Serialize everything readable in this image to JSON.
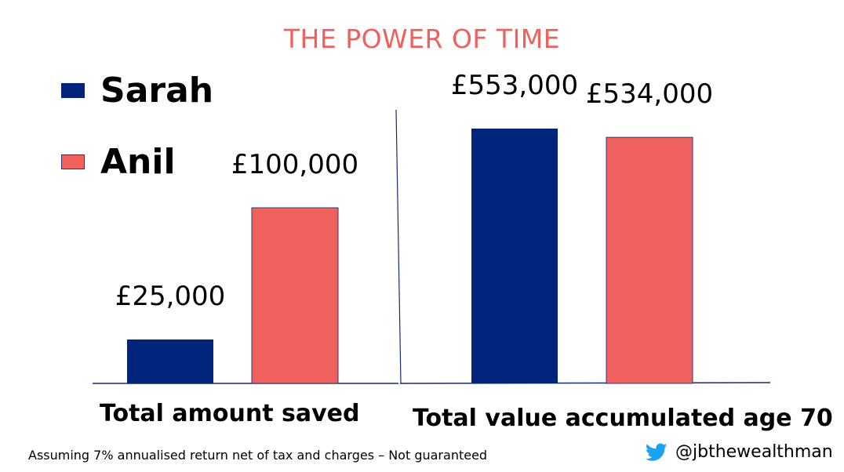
{
  "title": "THE POWER OF TIME",
  "legend": [
    {
      "label": "Sarah",
      "color": "#00257A"
    },
    {
      "label": "Anil",
      "color": "#F0605D"
    }
  ],
  "chart_data": {
    "type": "bar",
    "title": "THE POWER OF TIME",
    "groups": [
      {
        "label": "Total amount saved",
        "bars": [
          {
            "series": "Sarah",
            "value": 25000,
            "label": "£25,000"
          },
          {
            "series": "Anil",
            "value": 100000,
            "label": "£100,000"
          }
        ]
      },
      {
        "label": "Total value accumulated age 70",
        "bars": [
          {
            "series": "Sarah",
            "value": 553000,
            "label": "£553,000"
          },
          {
            "series": "Anil",
            "value": 534000,
            "label": "£534,000"
          }
        ]
      }
    ],
    "series": [
      {
        "name": "Sarah",
        "color": "#00257A"
      },
      {
        "name": "Anil",
        "color": "#F0605D"
      }
    ],
    "legend_position": "top-left",
    "grid": false
  },
  "footnote": "Assuming 7% annualised return net of tax and charges – Not guaranteed",
  "social": {
    "icon": "twitter-bird-icon",
    "handle": "@jbthewealthman"
  }
}
